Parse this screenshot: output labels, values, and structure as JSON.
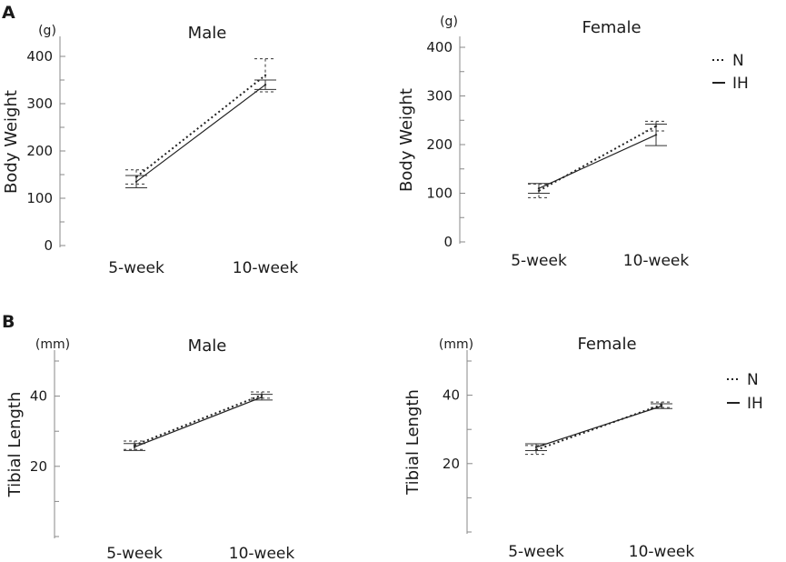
{
  "figure": {
    "panels": [
      {
        "letter": "A"
      },
      {
        "letter": "B"
      }
    ]
  },
  "chart_data": [
    {
      "type": "line",
      "panel": "A",
      "title": "Male",
      "unit": "(g)",
      "ylabel": "Body Weight",
      "xlabel": "",
      "categories": [
        "5-week",
        "10-week"
      ],
      "ylim": [
        0,
        400
      ],
      "yticks": [
        0,
        100,
        200,
        300,
        400
      ],
      "minor_step": 50,
      "series": [
        {
          "name": "N",
          "style": "dotted",
          "values": [
            145,
            360
          ],
          "errors": [
            15,
            35
          ]
        },
        {
          "name": "IH",
          "style": "solid",
          "values": [
            135,
            340
          ],
          "errors": [
            13,
            10
          ]
        }
      ]
    },
    {
      "type": "line",
      "panel": "A",
      "title": "Female",
      "unit": "(g)",
      "ylabel": "Body Weight",
      "xlabel": "",
      "categories": [
        "5-week",
        "10-week"
      ],
      "ylim": [
        0,
        400
      ],
      "yticks": [
        0,
        100,
        200,
        300,
        400
      ],
      "minor_step": 50,
      "legend": {
        "position": "top-right",
        "entries": [
          "N",
          "IH"
        ]
      },
      "series": [
        {
          "name": "N",
          "style": "dotted",
          "values": [
            105,
            238
          ],
          "errors": [
            14,
            10
          ]
        },
        {
          "name": "IH",
          "style": "solid",
          "values": [
            110,
            220
          ],
          "errors": [
            10,
            22
          ]
        }
      ]
    },
    {
      "type": "line",
      "panel": "B",
      "title": "Male",
      "unit": "(mm)",
      "ylabel": "Tibial Length",
      "xlabel": "",
      "categories": [
        "5-week",
        "10-week"
      ],
      "ylim": [
        0,
        50
      ],
      "yticks": [
        20,
        40
      ],
      "minor_step": 10,
      "series": [
        {
          "name": "N",
          "style": "dotted",
          "values": [
            26,
            40.3
          ],
          "errors": [
            1.2,
            0.9
          ]
        },
        {
          "name": "IH",
          "style": "solid",
          "values": [
            25.5,
            39.7
          ],
          "errors": [
            1.0,
            0.8
          ]
        }
      ]
    },
    {
      "type": "line",
      "panel": "B",
      "title": "Female",
      "unit": "(mm)",
      "ylabel": "Tibial Length",
      "xlabel": "",
      "categories": [
        "5-week",
        "10-week"
      ],
      "ylim": [
        0,
        50
      ],
      "yticks": [
        20,
        40
      ],
      "minor_step": 10,
      "legend": {
        "position": "top-right",
        "entries": [
          "N",
          "IH"
        ]
      },
      "series": [
        {
          "name": "N",
          "style": "dotted",
          "values": [
            24,
            37.2
          ],
          "errors": [
            1.3,
            0.8
          ]
        },
        {
          "name": "IH",
          "style": "solid",
          "values": [
            24.8,
            36.8
          ],
          "errors": [
            1.0,
            0.7
          ]
        }
      ]
    }
  ]
}
